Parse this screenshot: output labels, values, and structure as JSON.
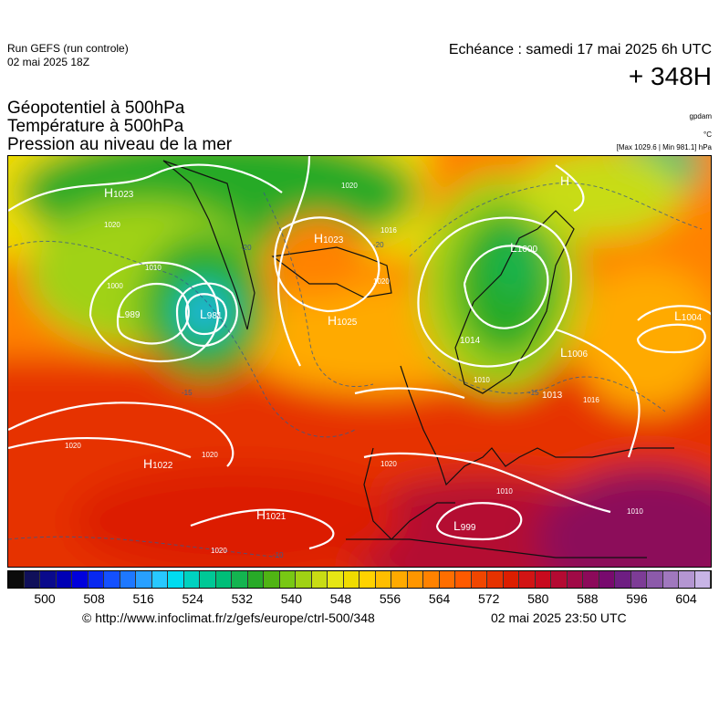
{
  "header": {
    "run_line1": "Run GEFS (run controle)",
    "run_line2": "02 mai 2025 18Z",
    "echeance": "Echéance : samedi 17 mai 2025 6h UTC",
    "hours": "+ 348H"
  },
  "variables": {
    "line1": "Géopotentiel à 500hPa",
    "line2": "Température à 500hPa",
    "line3": "Pression au niveau de la mer"
  },
  "units": {
    "gpdam": "gpdam",
    "celsius": "°C",
    "maxmin": "[Max 1029.6 | Min 981.1] hPa"
  },
  "map": {
    "pressure_centers": [
      {
        "type": "H",
        "value": "1023"
      },
      {
        "type": "H",
        "value": "1023"
      },
      {
        "type": "H",
        "value": "1025"
      },
      {
        "type": "L",
        "value": "989"
      },
      {
        "type": "L",
        "value": "981"
      },
      {
        "type": "H",
        "value": "1022"
      },
      {
        "type": "H",
        "value": "1021"
      },
      {
        "type": "L",
        "value": "999"
      },
      {
        "type": "L",
        "value": "1000"
      },
      {
        "type": "L",
        "value": "1004"
      },
      {
        "type": "L",
        "value": "1006"
      },
      {
        "type": "L",
        "value": "1013"
      },
      {
        "type": "L",
        "value": "1014"
      },
      {
        "type": "H",
        "value": ""
      }
    ],
    "isobar_labels": [
      "1020",
      "1010",
      "1000",
      "1020",
      "1016",
      "1020",
      "1020",
      "1020",
      "1020",
      "1010",
      "1010",
      "1016",
      "1010",
      "1020"
    ],
    "temp_labels": [
      "-20",
      "-15",
      "-10",
      "-20",
      "-15"
    ]
  },
  "colorbar": {
    "ticks": [
      "500",
      "508",
      "516",
      "524",
      "532",
      "540",
      "548",
      "556",
      "564",
      "572",
      "580",
      "588",
      "596",
      "604"
    ],
    "colors": [
      "#0b0b0b",
      "#10105a",
      "#0a0a8c",
      "#0000b4",
      "#0000dc",
      "#0828f0",
      "#1450ff",
      "#1e78ff",
      "#28a0ff",
      "#28c8ff",
      "#00dcf0",
      "#00d2c0",
      "#00c896",
      "#00be78",
      "#14b450",
      "#28aa28",
      "#50b414",
      "#78c814",
      "#a0d214",
      "#c8dc14",
      "#e6e614",
      "#f0dc00",
      "#ffd200",
      "#ffbe00",
      "#ffaa00",
      "#ff9600",
      "#ff8200",
      "#ff6e00",
      "#ff5a00",
      "#f04600",
      "#e63200",
      "#dc1e00",
      "#d21414",
      "#c80a1e",
      "#b40a32",
      "#a00a46",
      "#8c0a5a",
      "#780a6e",
      "#6e1e82",
      "#7d3c96",
      "#8c5aaa",
      "#a078be",
      "#b496d2",
      "#c8b4e6"
    ]
  },
  "footer": {
    "url": "© http://www.infoclimat.fr/z/gefs/europe/ctrl-500/348",
    "timestamp": "02 mai 2025 23:50 UTC"
  }
}
